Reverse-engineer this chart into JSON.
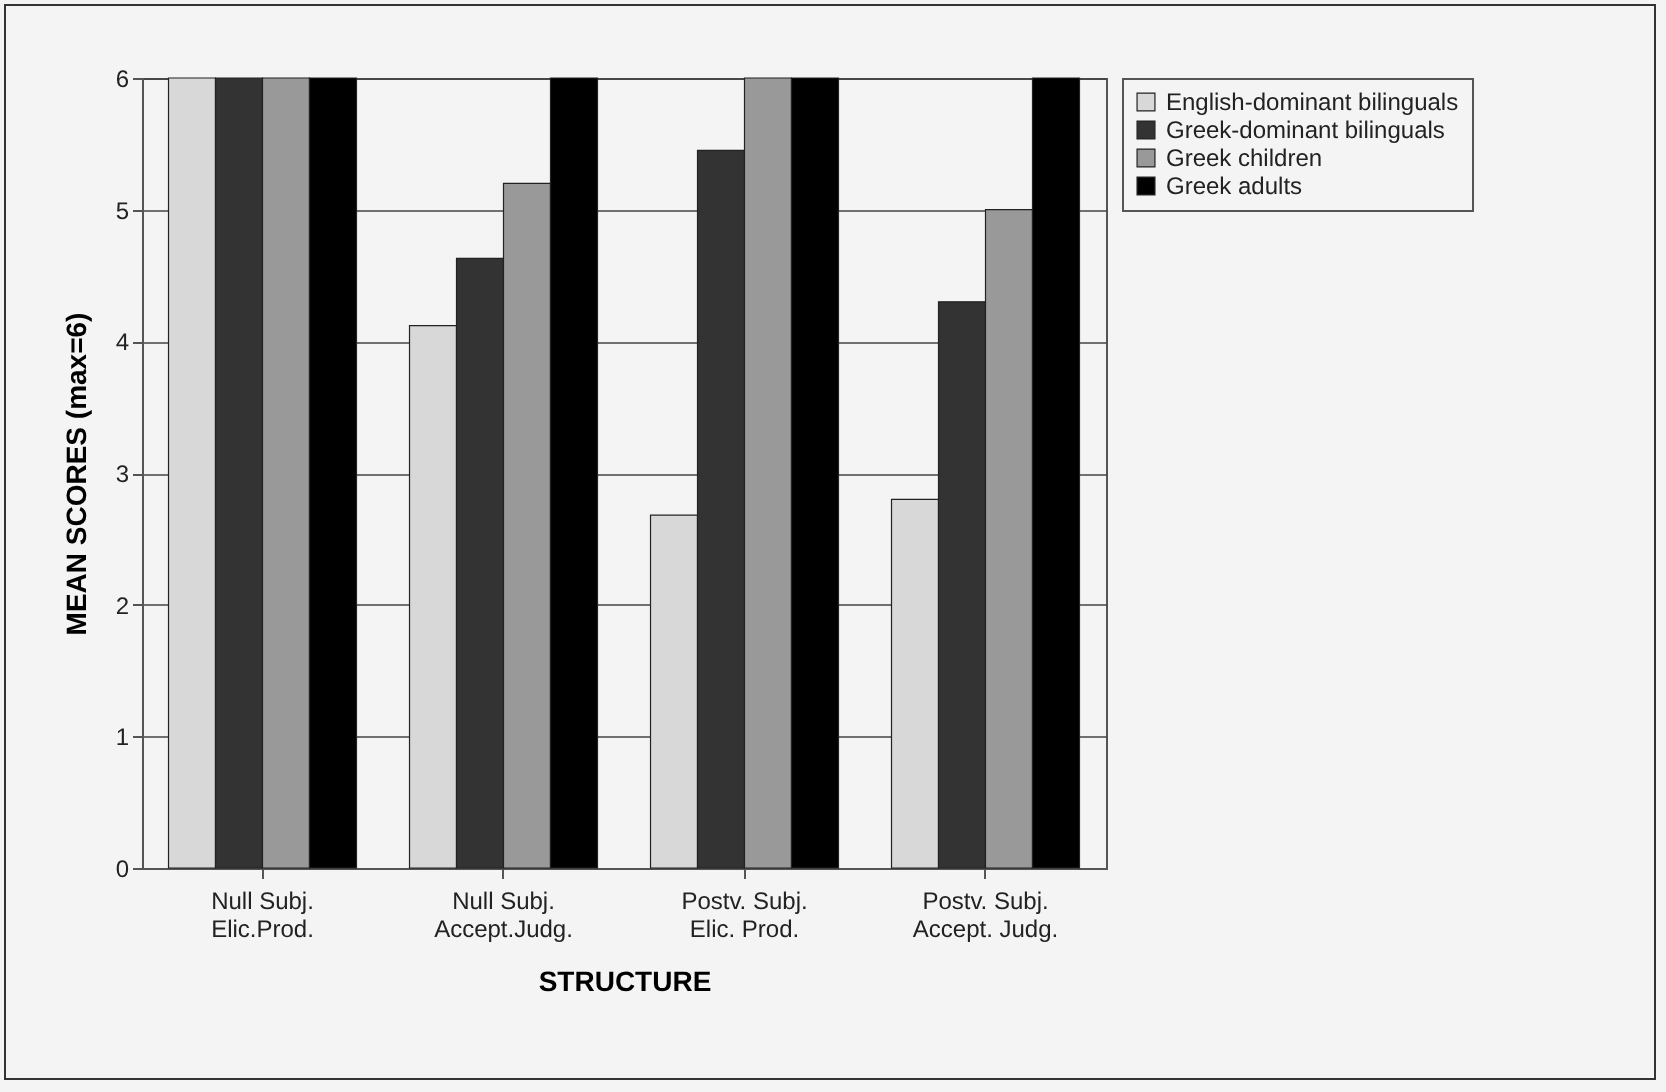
{
  "chart_data": {
    "type": "bar",
    "xlabel": "STRUCTURE",
    "ylabel": "MEAN SCORES (max=6)",
    "categories": [
      "Null Subj.\nElic.Prod.",
      "Null Subj.\nAccept.Judg.",
      "Postv. Subj.\nElic. Prod.",
      "Postv. Subj.\nAccept. Judg."
    ],
    "series": [
      {
        "name": "English-dominant bilinguals",
        "color": "#d8d8d8",
        "values": [
          6,
          4.12,
          2.68,
          2.8
        ]
      },
      {
        "name": "Greek-dominant bilinguals",
        "color": "#333333",
        "values": [
          6,
          4.63,
          5.45,
          4.3
        ]
      },
      {
        "name": "Greek children",
        "color": "#999999",
        "values": [
          6,
          5.2,
          6,
          5
        ]
      },
      {
        "name": "Greek adults",
        "color": "#000000",
        "values": [
          6,
          6,
          6,
          6
        ]
      }
    ],
    "ylim": [
      0,
      6
    ],
    "yticks": [
      0,
      1,
      2,
      3,
      4,
      5,
      6
    ],
    "grid": "y",
    "legend": "right"
  }
}
